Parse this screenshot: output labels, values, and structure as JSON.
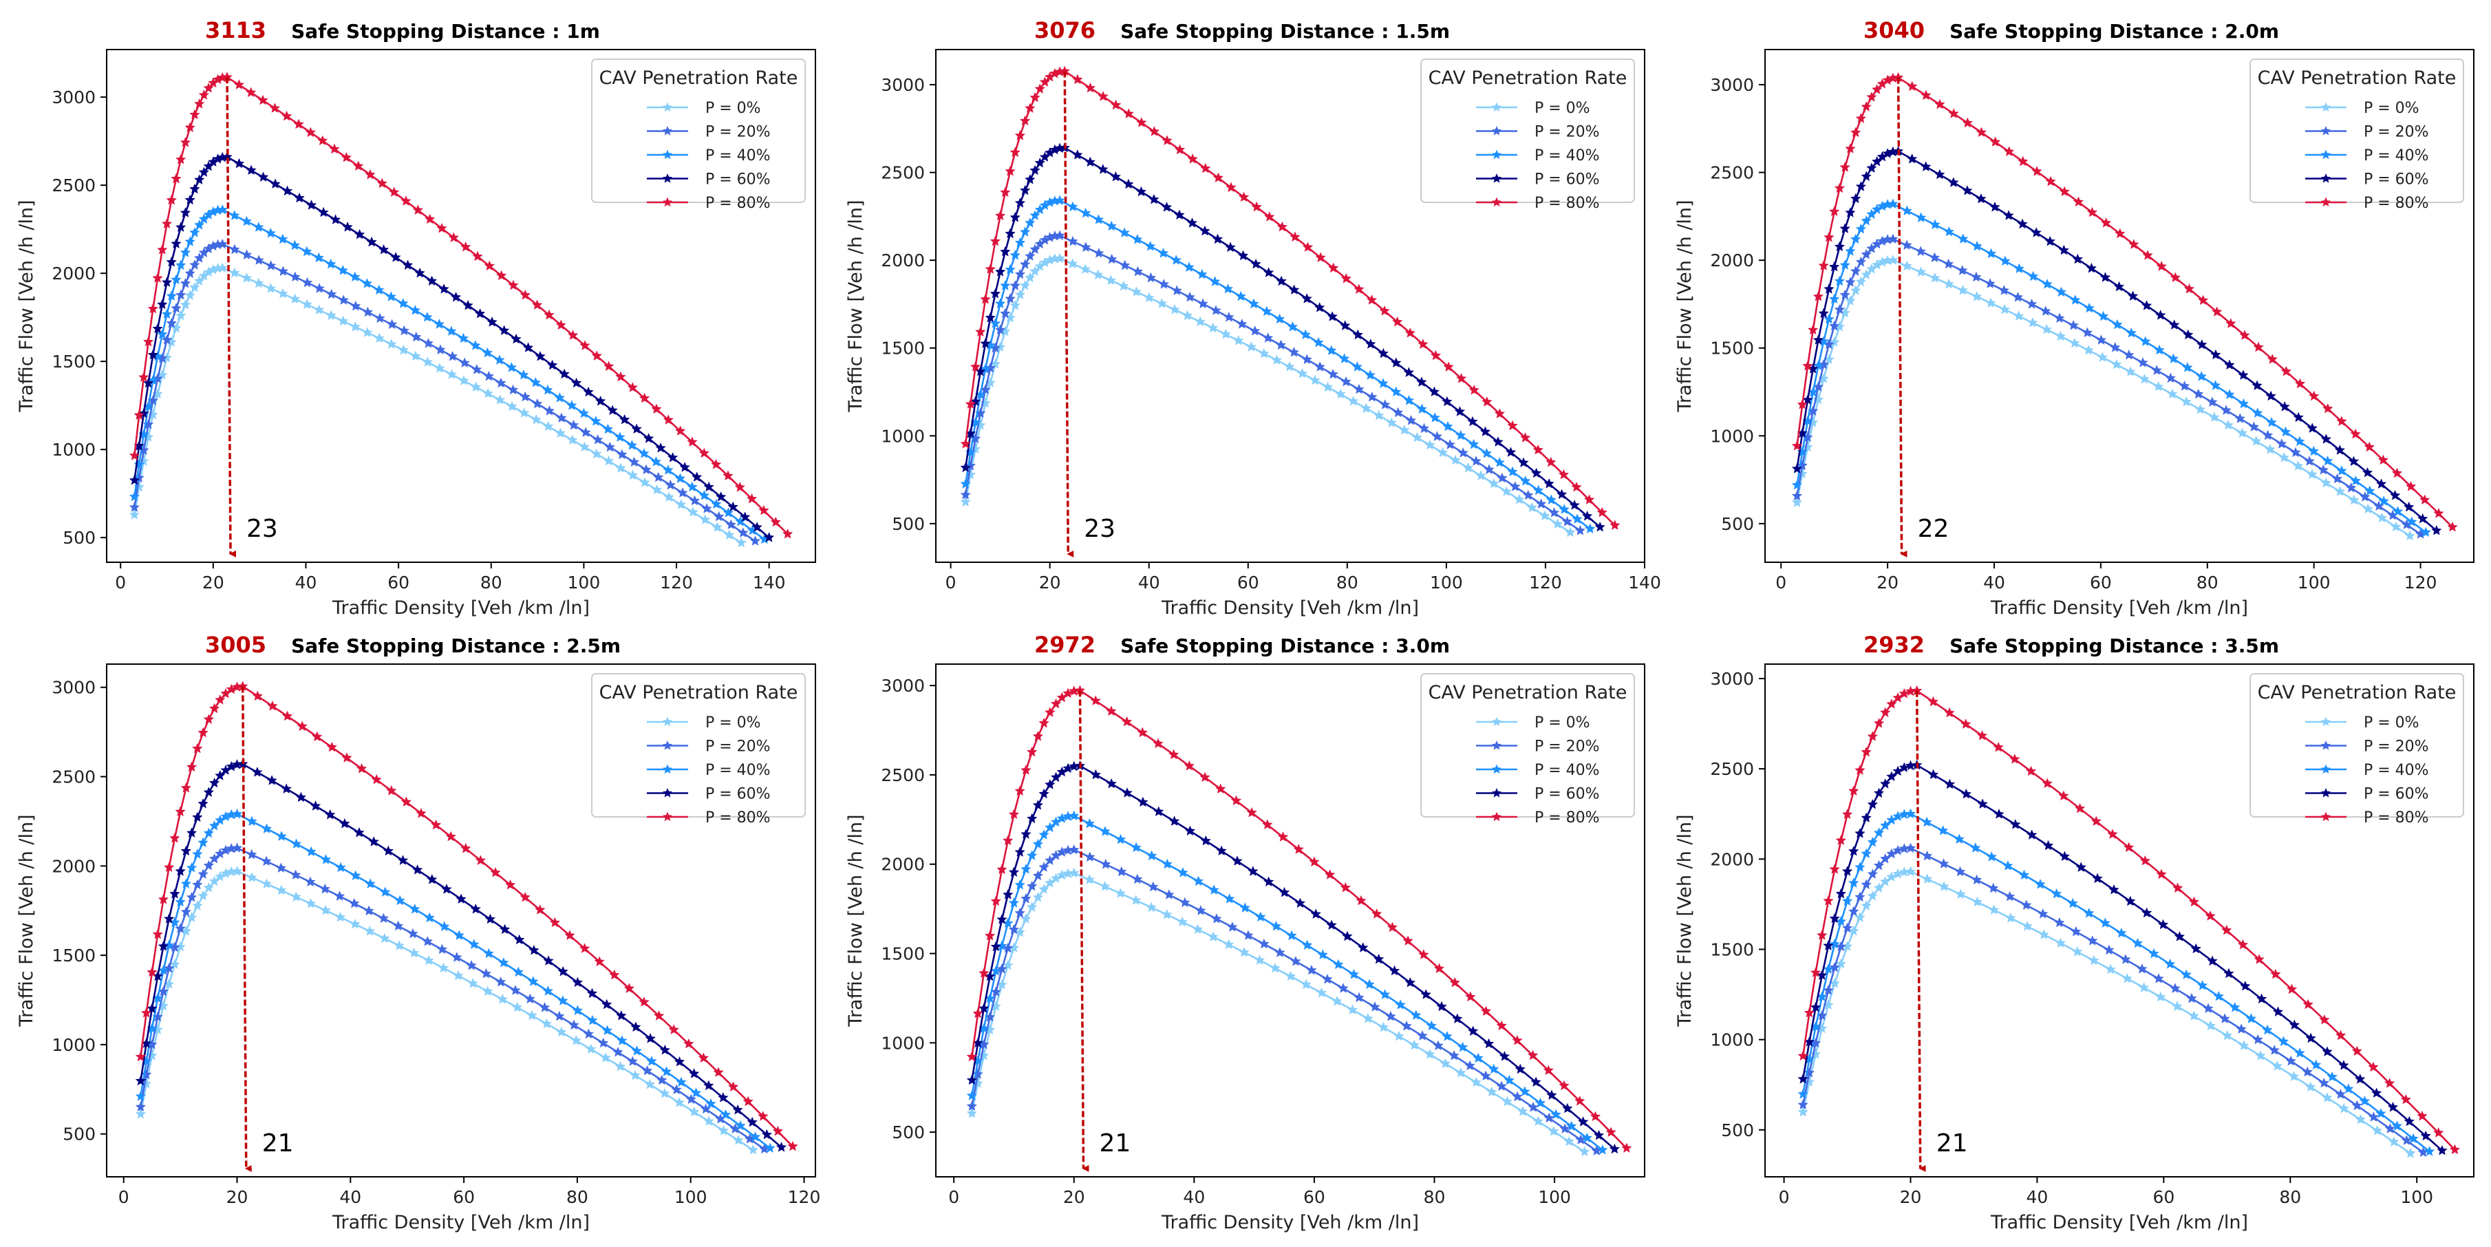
{
  "colors": {
    "p0": "#87cefa",
    "p20": "#4169e1",
    "p40": "#1e90ff",
    "p60": "#000080",
    "p80": "#dc143c",
    "annotation": "#c00000"
  },
  "legend": {
    "title": "CAV Penetration Rate",
    "entries": [
      "P = 0%",
      "P = 20%",
      "P = 40%",
      "P = 60%",
      "P = 80%"
    ]
  },
  "chart_data": [
    {
      "type": "line",
      "title_value": "3113",
      "title": "Safe Stopping Distance : 1m",
      "xlabel": "Traffic Density [Veh /km /ln]",
      "ylabel": "Traffic Flow [Veh /h /ln]",
      "xlim": [
        -3,
        150
      ],
      "ylim": [
        360,
        3270
      ],
      "xticks": [
        0,
        20,
        40,
        60,
        80,
        100,
        120,
        140
      ],
      "yticks": [
        500,
        1000,
        1500,
        2000,
        2500,
        3000
      ],
      "peak_density": 23,
      "peak_density_label": "23",
      "peak_flow": 3113,
      "series": [
        {
          "name": "P = 0%",
          "k_start": 3,
          "k_peak": 22,
          "q_peak": 2030,
          "k_end": 134,
          "q_end": 470
        },
        {
          "name": "P = 20%",
          "k_start": 3,
          "k_peak": 22,
          "q_peak": 2165,
          "k_end": 137,
          "q_end": 480
        },
        {
          "name": "P = 40%",
          "k_start": 3,
          "k_peak": 22,
          "q_peak": 2360,
          "k_end": 139,
          "q_end": 490
        },
        {
          "name": "P = 60%",
          "k_start": 3,
          "k_peak": 23,
          "q_peak": 2660,
          "k_end": 140,
          "q_end": 500
        },
        {
          "name": "P = 80%",
          "k_start": 3,
          "k_peak": 23,
          "q_peak": 3113,
          "k_end": 144,
          "q_end": 520
        }
      ]
    },
    {
      "type": "line",
      "title_value": "3076",
      "title": "Safe Stopping Distance : 1.5m",
      "xlabel": "Traffic Density [Veh /km /ln]",
      "ylabel": "Traffic Flow [Veh /h /ln]",
      "xlim": [
        -3,
        140
      ],
      "ylim": [
        280,
        3200
      ],
      "xticks": [
        0,
        20,
        40,
        60,
        80,
        100,
        120,
        140
      ],
      "yticks": [
        500,
        1000,
        1500,
        2000,
        2500,
        3000
      ],
      "peak_density": 23,
      "peak_density_label": "23",
      "peak_flow": 3076,
      "series": [
        {
          "name": "P = 0%",
          "k_start": 3,
          "k_peak": 22,
          "q_peak": 2010,
          "k_end": 125,
          "q_end": 450
        },
        {
          "name": "P = 20%",
          "k_start": 3,
          "k_peak": 22,
          "q_peak": 2140,
          "k_end": 127,
          "q_end": 460
        },
        {
          "name": "P = 40%",
          "k_start": 3,
          "k_peak": 22,
          "q_peak": 2340,
          "k_end": 129,
          "q_end": 470
        },
        {
          "name": "P = 60%",
          "k_start": 3,
          "k_peak": 23,
          "q_peak": 2640,
          "k_end": 131,
          "q_end": 480
        },
        {
          "name": "P = 80%",
          "k_start": 3,
          "k_peak": 23,
          "q_peak": 3076,
          "k_end": 134,
          "q_end": 490
        }
      ]
    },
    {
      "type": "line",
      "title_value": "3040",
      "title": "Safe Stopping Distance : 2.0m",
      "xlabel": "Traffic Density [Veh /km /ln]",
      "ylabel": "Traffic Flow [Veh /h /ln]",
      "xlim": [
        -3,
        130
      ],
      "ylim": [
        280,
        3200
      ],
      "xticks": [
        0,
        20,
        40,
        60,
        80,
        100,
        120
      ],
      "yticks": [
        500,
        1000,
        1500,
        2000,
        2500,
        3000
      ],
      "peak_density": 22,
      "peak_density_label": "22",
      "peak_flow": 3040,
      "series": [
        {
          "name": "P = 0%",
          "k_start": 3,
          "k_peak": 21,
          "q_peak": 2000,
          "k_end": 118,
          "q_end": 430
        },
        {
          "name": "P = 20%",
          "k_start": 3,
          "k_peak": 21,
          "q_peak": 2120,
          "k_end": 120,
          "q_end": 440
        },
        {
          "name": "P = 40%",
          "k_start": 3,
          "k_peak": 21,
          "q_peak": 2320,
          "k_end": 121,
          "q_end": 450
        },
        {
          "name": "P = 60%",
          "k_start": 3,
          "k_peak": 22,
          "q_peak": 2620,
          "k_end": 123,
          "q_end": 460
        },
        {
          "name": "P = 80%",
          "k_start": 3,
          "k_peak": 22,
          "q_peak": 3040,
          "k_end": 126,
          "q_end": 480
        }
      ]
    },
    {
      "type": "line",
      "title_value": "3005",
      "title": "Safe Stopping Distance : 2.5m",
      "xlabel": "Traffic Density [Veh /km /ln]",
      "ylabel": "Traffic Flow [Veh /h /ln]",
      "xlim": [
        -3,
        122
      ],
      "ylim": [
        260,
        3130
      ],
      "xticks": [
        0,
        20,
        40,
        60,
        80,
        100,
        120
      ],
      "yticks": [
        500,
        1000,
        1500,
        2000,
        2500,
        3000
      ],
      "peak_density": 21,
      "peak_density_label": "21",
      "peak_flow": 3005,
      "series": [
        {
          "name": "P = 0%",
          "k_start": 3,
          "k_peak": 20,
          "q_peak": 1970,
          "k_end": 111,
          "q_end": 410
        },
        {
          "name": "P = 20%",
          "k_start": 3,
          "k_peak": 20,
          "q_peak": 2100,
          "k_end": 113,
          "q_end": 415
        },
        {
          "name": "P = 40%",
          "k_start": 3,
          "k_peak": 20,
          "q_peak": 2290,
          "k_end": 114,
          "q_end": 420
        },
        {
          "name": "P = 60%",
          "k_start": 3,
          "k_peak": 21,
          "q_peak": 2570,
          "k_end": 116,
          "q_end": 425
        },
        {
          "name": "P = 80%",
          "k_start": 3,
          "k_peak": 21,
          "q_peak": 3005,
          "k_end": 118,
          "q_end": 430
        }
      ]
    },
    {
      "type": "line",
      "title_value": "2972",
      "title": "Safe Stopping Distance : 3.0m",
      "xlabel": "Traffic Density [Veh /km /ln]",
      "ylabel": "Traffic Flow [Veh /h /ln]",
      "xlim": [
        -3,
        115
      ],
      "ylim": [
        250,
        3120
      ],
      "xticks": [
        0,
        20,
        40,
        60,
        80,
        100
      ],
      "yticks": [
        500,
        1000,
        1500,
        2000,
        2500,
        3000
      ],
      "peak_density": 21,
      "peak_density_label": "21",
      "peak_flow": 2972,
      "series": [
        {
          "name": "P = 0%",
          "k_start": 3,
          "k_peak": 20,
          "q_peak": 1950,
          "k_end": 105,
          "q_end": 390
        },
        {
          "name": "P = 20%",
          "k_start": 3,
          "k_peak": 20,
          "q_peak": 2080,
          "k_end": 107,
          "q_end": 395
        },
        {
          "name": "P = 40%",
          "k_start": 3,
          "k_peak": 20,
          "q_peak": 2270,
          "k_end": 108,
          "q_end": 400
        },
        {
          "name": "P = 60%",
          "k_start": 3,
          "k_peak": 21,
          "q_peak": 2550,
          "k_end": 110,
          "q_end": 405
        },
        {
          "name": "P = 80%",
          "k_start": 3,
          "k_peak": 21,
          "q_peak": 2972,
          "k_end": 112,
          "q_end": 410
        }
      ]
    },
    {
      "type": "line",
      "title_value": "2932",
      "title": "Safe Stopping Distance : 3.5m",
      "xlabel": "Traffic Density [Veh /km /ln]",
      "ylabel": "Traffic Flow [Veh /h /ln]",
      "xlim": [
        -3,
        109
      ],
      "ylim": [
        240,
        3080
      ],
      "xticks": [
        0,
        20,
        40,
        60,
        80,
        100
      ],
      "yticks": [
        500,
        1000,
        1500,
        2000,
        2500,
        3000
      ],
      "peak_density": 21,
      "peak_density_label": "21",
      "peak_flow": 2932,
      "series": [
        {
          "name": "P = 0%",
          "k_start": 3,
          "k_peak": 20,
          "q_peak": 1930,
          "k_end": 99,
          "q_end": 370
        },
        {
          "name": "P = 20%",
          "k_start": 3,
          "k_peak": 20,
          "q_peak": 2060,
          "k_end": 101,
          "q_end": 375
        },
        {
          "name": "P = 40%",
          "k_start": 3,
          "k_peak": 20,
          "q_peak": 2250,
          "k_end": 102,
          "q_end": 380
        },
        {
          "name": "P = 60%",
          "k_start": 3,
          "k_peak": 21,
          "q_peak": 2520,
          "k_end": 104,
          "q_end": 385
        },
        {
          "name": "P = 80%",
          "k_start": 3,
          "k_peak": 21,
          "q_peak": 2932,
          "k_end": 106,
          "q_end": 390
        }
      ]
    }
  ]
}
